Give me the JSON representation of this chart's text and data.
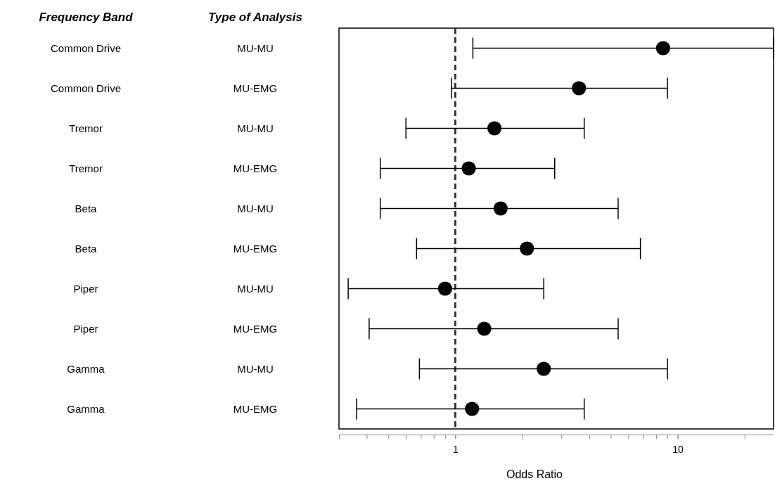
{
  "chart_data": {
    "type": "scatter",
    "orientation": "horizontal",
    "xlabel": "Odds Ratio",
    "annotations": [
      "Frequency Band",
      "Type of Analysis"
    ],
    "categories": [
      "MU-MU",
      "MU-EMG",
      "MU-MU",
      "MU-EMG",
      "MU-MU",
      "MU-EMG",
      "MU-MU",
      "MU-EMG",
      "MU-MU",
      "MU-EMG"
    ],
    "y2_categories": [
      "Common Drive",
      "Common Drive",
      "Tremor",
      "Tremor",
      "Beta",
      "Beta",
      "Piper",
      "Piper",
      "Gamma",
      "Gamma"
    ],
    "series": [
      {
        "color": "#000000",
        "values": [
          8.6,
          3.6,
          1.5,
          1.15,
          1.6,
          2.1,
          0.9,
          1.35,
          2.5,
          1.19
        ],
        "errors": [
          [
            1.2,
            27
          ],
          [
            0.96,
            9.0
          ],
          [
            0.6,
            3.8
          ],
          [
            0.46,
            2.8
          ],
          [
            0.46,
            5.4
          ],
          [
            0.67,
            6.8
          ],
          [
            0.33,
            2.5
          ],
          [
            0.41,
            5.4
          ],
          [
            0.69,
            9.0
          ],
          [
            0.36,
            3.8
          ]
        ]
      }
    ],
    "log": "x",
    "xlim": [
      0.3,
      27
    ],
    "xticks": [
      {
        "value": 0.3,
        "label": null
      },
      {
        "value": 0.4,
        "label": null
      },
      {
        "value": 0.5,
        "label": null
      },
      {
        "value": 0.6,
        "label": null
      },
      {
        "value": 0.7,
        "label": null
      },
      {
        "value": 0.8,
        "label": null
      },
      {
        "value": 0.9,
        "label": null
      },
      1,
      {
        "value": 2,
        "label": null
      },
      {
        "value": 3,
        "label": null
      },
      {
        "value": 4,
        "label": null
      },
      {
        "value": 5,
        "label": null
      },
      {
        "value": 6,
        "label": null
      },
      {
        "value": 7,
        "label": null
      },
      {
        "value": 8,
        "label": null
      },
      {
        "value": 9,
        "label": null
      },
      10,
      {
        "value": 20,
        "label": null
      }
    ],
    "ref_lines": [
      {
        "axis": "x",
        "value": 1,
        "color": "#333333",
        "line_style": "dashed"
      }
    ],
    "marker": "circle"
  }
}
